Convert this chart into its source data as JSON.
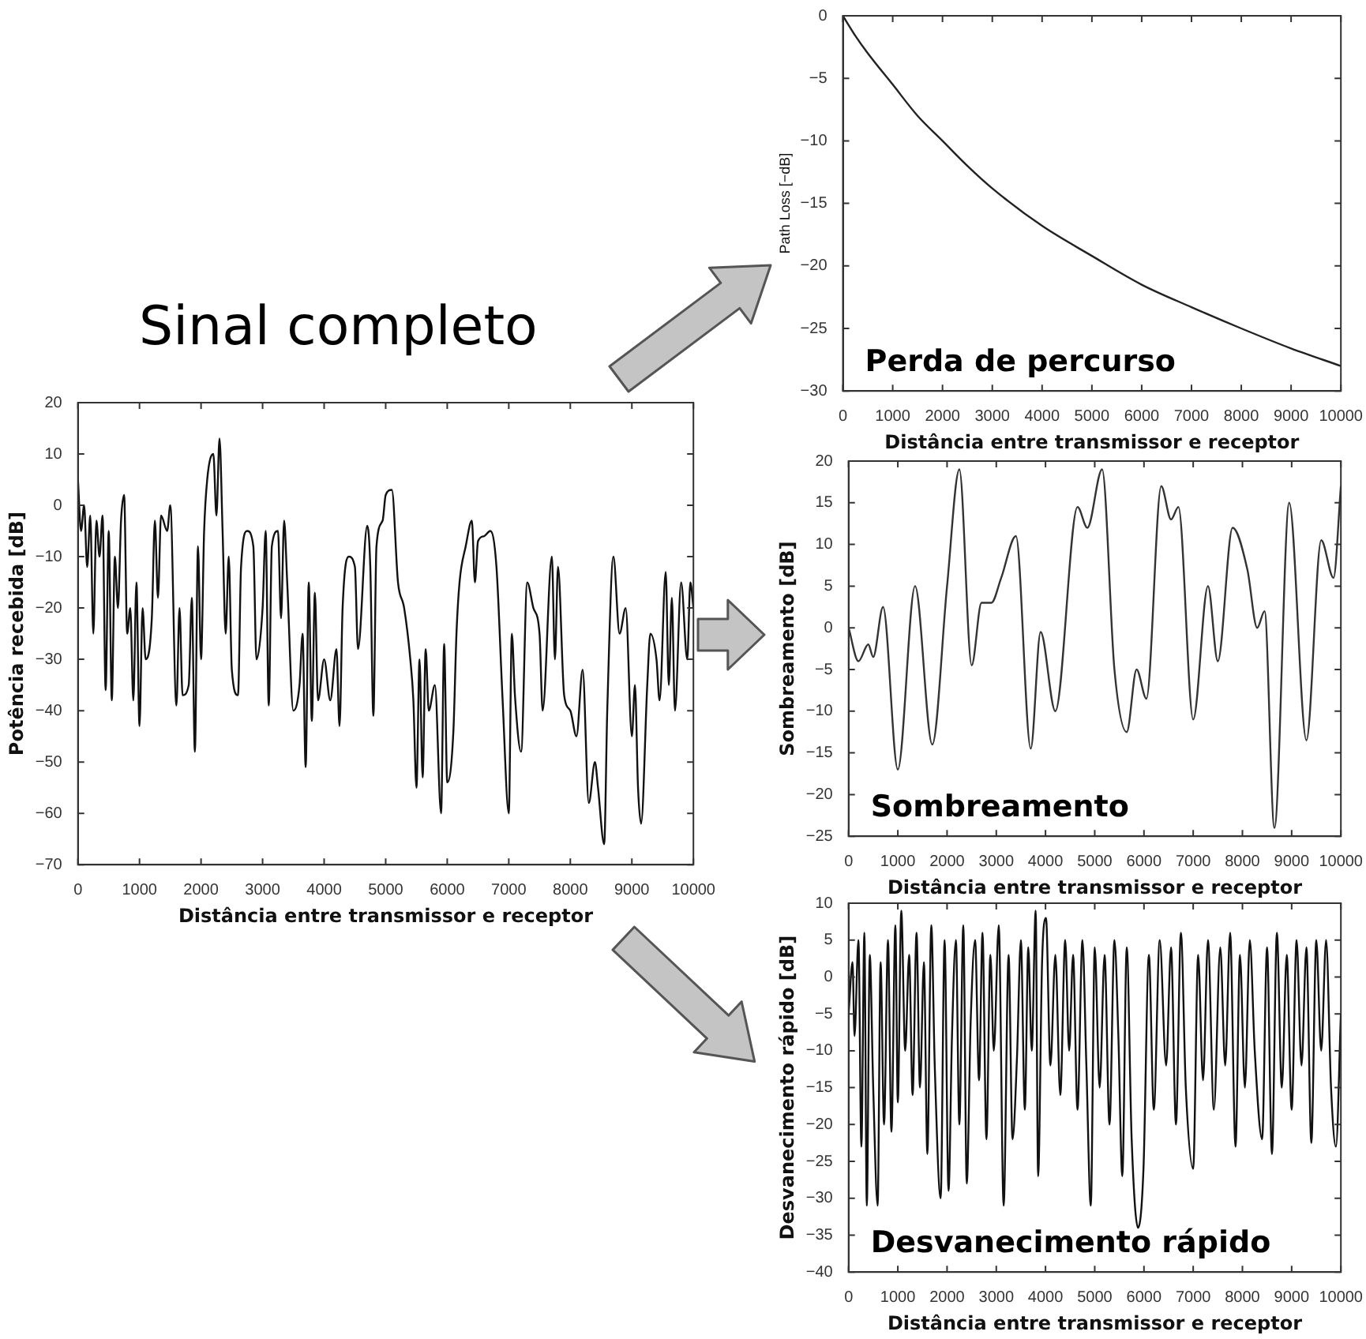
{
  "chart_data": [
    {
      "type": "line",
      "title": "Sinal completo",
      "xlabel": "Distância entre transmissor e receptor",
      "ylabel": "Potência recebida [dB]",
      "color": "#111111",
      "xlim": [
        0,
        10000
      ],
      "ylim": [
        -70,
        20
      ],
      "xticks": [
        0,
        1000,
        2000,
        3000,
        4000,
        5000,
        6000,
        7000,
        8000,
        9000,
        10000
      ],
      "yticks": [
        -70,
        -60,
        -50,
        -40,
        -30,
        -20,
        -10,
        0,
        10,
        20
      ],
      "x": [
        0,
        50,
        100,
        150,
        200,
        250,
        300,
        350,
        400,
        450,
        500,
        550,
        600,
        650,
        700,
        750,
        800,
        850,
        900,
        950,
        1000,
        1050,
        1100,
        1200,
        1250,
        1300,
        1350,
        1450,
        1500,
        1600,
        1650,
        1700,
        1800,
        1850,
        1900,
        1950,
        2000,
        2050,
        2100,
        2200,
        2250,
        2300,
        2350,
        2400,
        2450,
        2500,
        2600,
        2650,
        2750,
        2850,
        2900,
        3000,
        3050,
        3100,
        3150,
        3250,
        3300,
        3350,
        3400,
        3500,
        3600,
        3650,
        3700,
        3750,
        3800,
        3850,
        3900,
        4000,
        4100,
        4200,
        4250,
        4300,
        4400,
        4500,
        4550,
        4700,
        4750,
        4800,
        4850,
        4950,
        5000,
        5100,
        5200,
        5300,
        5400,
        5450,
        5500,
        5550,
        5600,
        5650,
        5700,
        5800,
        5900,
        5950,
        6000,
        6100,
        6150,
        6200,
        6300,
        6400,
        6450,
        6500,
        6600,
        6700,
        6800,
        6900,
        7000,
        7050,
        7100,
        7200,
        7300,
        7400,
        7500,
        7550,
        7700,
        7750,
        7800,
        7900,
        8000,
        8100,
        8200,
        8300,
        8400,
        8450,
        8550,
        8600,
        8700,
        8800,
        8900,
        9000,
        9050,
        9100,
        9150,
        9250,
        9300,
        9400,
        9450,
        9550,
        9600,
        9650,
        9700,
        9800,
        9900,
        9950,
        10000
      ],
      "values": [
        5,
        -5,
        0,
        -12,
        -2,
        -25,
        -3,
        -10,
        -2,
        -36,
        -5,
        -38,
        -10,
        -20,
        -3,
        2,
        -25,
        -20,
        -38,
        -15,
        -43,
        -20,
        -30,
        -22,
        -3,
        -18,
        -2,
        -5,
        0,
        -39,
        -20,
        -37,
        -35,
        -18,
        -48,
        -8,
        -30,
        -5,
        5,
        10,
        -2,
        13,
        -5,
        -25,
        -10,
        -32,
        -37,
        -12,
        -5,
        -8,
        -30,
        -20,
        -5,
        -39,
        -8,
        -5,
        -22,
        -3,
        -15,
        -40,
        -35,
        -25,
        -51,
        -15,
        -42,
        -17,
        -38,
        -30,
        -38,
        -28,
        -43,
        -20,
        -10,
        -12,
        -28,
        -4,
        -12,
        -41,
        -8,
        -3,
        2,
        3,
        -15,
        -20,
        -30,
        -38,
        -55,
        -30,
        -53,
        -28,
        -40,
        -35,
        -60,
        -27,
        -54,
        -44,
        -25,
        -15,
        -8,
        -3,
        -15,
        -7,
        -6,
        -5,
        -12,
        -38,
        -60,
        -25,
        -37,
        -48,
        -15,
        -20,
        -25,
        -40,
        -10,
        -30,
        -12,
        -37,
        -40,
        -45,
        -32,
        -58,
        -50,
        -55,
        -66,
        -40,
        -10,
        -25,
        -20,
        -45,
        -35,
        -55,
        -62,
        -35,
        -25,
        -30,
        -38,
        -13,
        -35,
        -18,
        -40,
        -15,
        -30,
        -15,
        -20
      ]
    },
    {
      "type": "line",
      "title": "Perda de percurso",
      "xlabel": "Distância entre transmissor e receptor",
      "ylabel": "Path Loss [−dB]",
      "color": "#222222",
      "xlim": [
        0,
        10000
      ],
      "ylim": [
        -30,
        0
      ],
      "xticks": [
        0,
        1000,
        2000,
        3000,
        4000,
        5000,
        6000,
        7000,
        8000,
        9000,
        10000
      ],
      "yticks": [
        -30,
        -25,
        -20,
        -15,
        -10,
        -5,
        0
      ],
      "x": [
        0,
        250,
        500,
        1000,
        1500,
        2000,
        2500,
        3000,
        4000,
        5000,
        6000,
        7000,
        8000,
        9000,
        10000
      ],
      "values": [
        0,
        -1.6,
        -3,
        -5.5,
        -8,
        -10,
        -12,
        -13.8,
        -16.8,
        -19.2,
        -21.5,
        -23.3,
        -25,
        -26.6,
        -28
      ]
    },
    {
      "type": "line",
      "title": "Sombreamento",
      "xlabel": "Distância entre transmissor e receptor",
      "ylabel": "Sombreamento [dB]",
      "color": "#333333",
      "xlim": [
        0,
        10000
      ],
      "ylim": [
        -25,
        20
      ],
      "xticks": [
        0,
        1000,
        2000,
        3000,
        4000,
        5000,
        6000,
        7000,
        8000,
        9000,
        10000
      ],
      "yticks": [
        -25,
        -20,
        -15,
        -10,
        -5,
        0,
        5,
        10,
        15,
        20
      ],
      "x": [
        0,
        200,
        400,
        500,
        700,
        1000,
        1350,
        1700,
        2000,
        2250,
        2500,
        2700,
        2900,
        3100,
        3400,
        3700,
        3900,
        4200,
        4650,
        4850,
        5150,
        5400,
        5650,
        5850,
        6050,
        6350,
        6550,
        6700,
        7000,
        7300,
        7500,
        7800,
        8100,
        8300,
        8450,
        8650,
        8950,
        9300,
        9600,
        9850,
        10000
      ],
      "values": [
        0,
        -4,
        -2,
        -3.5,
        2.5,
        -17,
        5,
        -14,
        5,
        19,
        -4.5,
        3,
        3,
        6,
        11,
        -14.5,
        -0.5,
        -10,
        14.5,
        12,
        19,
        -5,
        -12.5,
        -5,
        -8.5,
        17,
        13,
        14.5,
        -11,
        5,
        -4,
        12,
        7,
        0,
        2,
        -24,
        15,
        -13.5,
        10.5,
        6,
        17
      ]
    },
    {
      "type": "line",
      "title": "Desvanecimento rápido",
      "xlabel": "Distância entre transmissor e receptor",
      "ylabel": "Desvanecimento rápido [dB]",
      "color": "#111111",
      "xlim": [
        0,
        10000
      ],
      "ylim": [
        -40,
        10
      ],
      "xticks": [
        0,
        1000,
        2000,
        3000,
        4000,
        5000,
        6000,
        7000,
        8000,
        9000,
        10000
      ],
      "yticks": [
        -40,
        -35,
        -30,
        -25,
        -20,
        -15,
        -10,
        -5,
        0,
        5,
        10
      ],
      "x": [
        0,
        80,
        120,
        200,
        260,
        320,
        370,
        430,
        500,
        590,
        650,
        720,
        800,
        870,
        950,
        1000,
        1070,
        1150,
        1230,
        1300,
        1380,
        1450,
        1530,
        1600,
        1680,
        1750,
        1870,
        1950,
        2030,
        2100,
        2180,
        2250,
        2330,
        2400,
        2480,
        2570,
        2650,
        2720,
        2800,
        2880,
        2950,
        3050,
        3150,
        3250,
        3330,
        3420,
        3500,
        3580,
        3650,
        3720,
        3800,
        3850,
        3930,
        4010,
        4100,
        4200,
        4300,
        4400,
        4480,
        4560,
        4650,
        4750,
        4830,
        4920,
        5000,
        5100,
        5200,
        5300,
        5400,
        5480,
        5560,
        5650,
        5750,
        5880,
        5990,
        6100,
        6200,
        6320,
        6450,
        6550,
        6650,
        6750,
        6850,
        7000,
        7100,
        7200,
        7300,
        7420,
        7550,
        7650,
        7750,
        7860,
        7950,
        8050,
        8150,
        8250,
        8400,
        8500,
        8600,
        8700,
        8800,
        8900,
        9000,
        9100,
        9200,
        9300,
        9400,
        9500,
        9600,
        9700,
        9800,
        9900,
        10000
      ],
      "values": [
        -5,
        2,
        -8,
        5,
        -23,
        6,
        -31,
        3,
        -15,
        -31,
        2,
        -20,
        5,
        -21,
        7,
        -17,
        9,
        -10,
        3,
        -16,
        6,
        -15,
        2,
        -24,
        7,
        -12,
        -30,
        5,
        -29,
        -8,
        5,
        -20,
        7,
        -28,
        -6,
        5,
        -14,
        6,
        -22,
        3,
        -10,
        7,
        -31,
        3,
        -22,
        -11,
        5,
        -18,
        4,
        -10,
        9,
        -27,
        2,
        8,
        -12,
        3,
        -16,
        5,
        -10,
        3,
        -18,
        5,
        -12,
        -31,
        4,
        -15,
        3,
        -20,
        5,
        -8,
        -27,
        4,
        -22,
        -34,
        -26,
        3,
        -18,
        5,
        -12,
        4,
        -20,
        6,
        -15,
        -26,
        3,
        -14,
        5,
        -18,
        4,
        -12,
        6,
        -23,
        3,
        -15,
        5,
        -10,
        -22,
        4,
        -24,
        6,
        -15,
        3,
        -18,
        5,
        -12,
        4,
        -22.5,
        5,
        -10,
        5,
        -15,
        -23,
        -5
      ]
    }
  ]
}
